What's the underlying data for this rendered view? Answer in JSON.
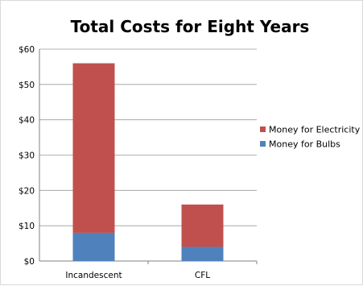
{
  "chart_data": {
    "type": "bar",
    "stacked": true,
    "title": "Total Costs for Eight Years",
    "xlabel": "",
    "ylabel": "",
    "categories": [
      "Incandescent",
      "CFL"
    ],
    "series": [
      {
        "name": "Money for Bulbs",
        "values": [
          8,
          4
        ],
        "color": "#4f81bd"
      },
      {
        "name": "Money for Electricity",
        "values": [
          48,
          12
        ],
        "color": "#c0504d"
      }
    ],
    "ylim": [
      0,
      60
    ],
    "yticks": [
      0,
      10,
      20,
      30,
      40,
      50,
      60
    ],
    "ytick_labels": [
      "$0",
      "$10",
      "$20",
      "$30",
      "$40",
      "$50",
      "$60"
    ],
    "grid": true,
    "legend_position": "right",
    "legend_labels": [
      "Money for Electricity",
      "Money for Bulbs"
    ]
  }
}
